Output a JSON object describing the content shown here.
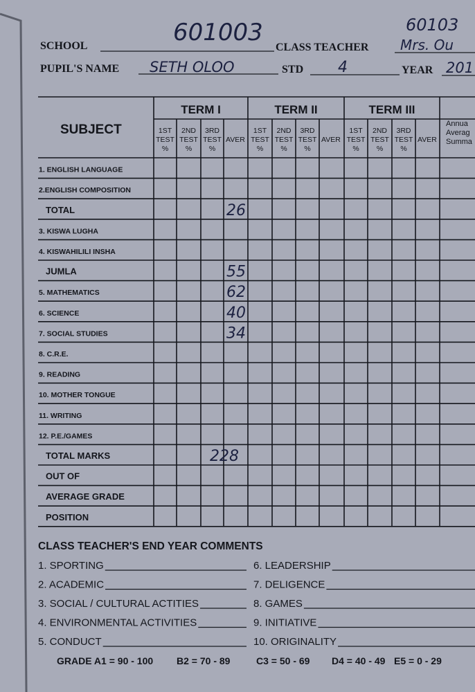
{
  "header": {
    "handwritten_code": "601003",
    "corner_code": "60103",
    "school_label": "SCHOOL",
    "class_teacher_label": "CLASS TEACHER",
    "class_teacher_value": "Mrs. Ou",
    "pupil_name_label": "PUPIL'S NAME",
    "pupil_name_value": "SETH OLOO",
    "std_label": "STD",
    "std_value": "4",
    "year_label": "YEAR",
    "year_value": "201"
  },
  "table": {
    "subject_header": "SUBJECT",
    "terms": [
      "TERM I",
      "TERM II",
      "TERM III"
    ],
    "columns": [
      [
        "1ST",
        "TEST",
        "%"
      ],
      [
        "2ND",
        "TEST",
        "%"
      ],
      [
        "3RD",
        "TEST",
        "%"
      ],
      [
        "AVER"
      ]
    ],
    "annual_header": [
      "Annua",
      "Averag",
      "Summa"
    ],
    "rows": [
      {
        "subject": "1. ENGLISH LANGUAGE"
      },
      {
        "subject": "2.ENGLISH COMPOSITION"
      },
      {
        "subject": "TOTAL",
        "term1_average": 26
      },
      {
        "subject": "3. KISWA LUGHA"
      },
      {
        "subject": "4. KISWAHILILI INSHA"
      },
      {
        "subject": "JUMLA",
        "term1_average": 55
      },
      {
        "subject": "5. MATHEMATICS",
        "term1_average": 62
      },
      {
        "subject": "6. SCIENCE",
        "term1_average": 40
      },
      {
        "subject": "7. SOCIAL STUDIES",
        "term1_average": 34
      },
      {
        "subject": "8. C.R.E."
      },
      {
        "subject": "9. READING"
      },
      {
        "subject": "10. MOTHER TONGUE"
      },
      {
        "subject": "11. WRITING"
      },
      {
        "subject": "12. P.E./GAMES"
      },
      {
        "subject": "TOTAL MARKS",
        "term1_average": 228
      },
      {
        "subject": "OUT OF"
      },
      {
        "subject": "AVERAGE GRADE"
      },
      {
        "subject": "POSITION"
      }
    ]
  },
  "comments": {
    "title": "CLASS TEACHER'S END YEAR COMMENTS",
    "items": [
      "1. SPORTING",
      "2. ACADEMIC",
      "3. SOCIAL / CULTURAL ACTITIES",
      "4. ENVIRONMENTAL ACTIVITIES",
      "5. CONDUCT",
      "6. LEADERSHIP",
      "7. DELIGENCE",
      "8. GAMES",
      "9. INITIATIVE",
      "10. ORIGINALITY"
    ]
  },
  "grading": [
    "GRADE A1 = 90 - 100",
    "B2 = 70 - 89",
    "C3 = 50 - 69",
    "D4 = 40 - 49",
    "E5 = 0 - 29"
  ]
}
